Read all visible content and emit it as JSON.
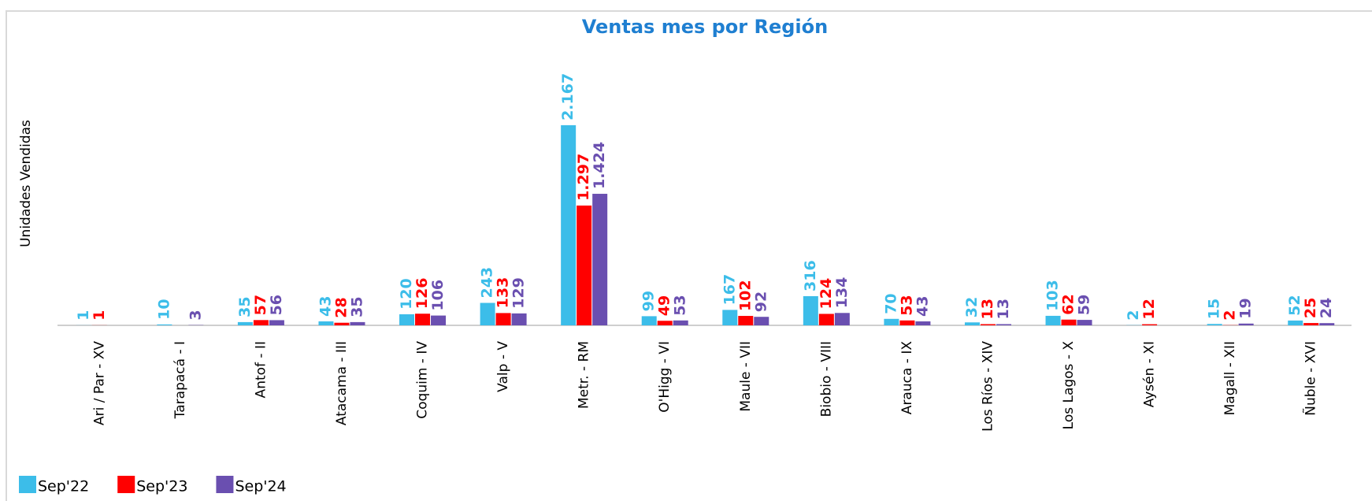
{
  "chart_data": {
    "type": "bar",
    "title": "Ventas mes por Región",
    "y_label": "Unidades Vendidas",
    "categories": [
      "Ari / Par - XV",
      "Tarapacá - I",
      "Antof - II",
      "Atacama - III",
      "Coquim - IV",
      "Valp - V",
      "Metr. - RM",
      "O'Higg - VI",
      "Maule - VII",
      "Biobio - VIII",
      "Arauca - IX",
      "Los Ríos - XIV",
      "Los Lagos - X",
      "Aysén - XI",
      "Magall - XII",
      "Ñuble - XVI"
    ],
    "series": [
      {
        "name": "Sep'22",
        "color": "#3cbde9",
        "values": [
          1,
          10,
          35,
          43,
          120,
          243,
          2167,
          99,
          167,
          316,
          70,
          32,
          103,
          2,
          15,
          52
        ],
        "value_labels": [
          "1",
          "10",
          "35",
          "43",
          "120",
          "243",
          "2.167",
          "99",
          "167",
          "316",
          "70",
          "32",
          "103",
          "2",
          "15",
          "52"
        ]
      },
      {
        "name": "Sep'23",
        "color": "#ff0000",
        "values": [
          1,
          null,
          57,
          28,
          126,
          133,
          1297,
          49,
          102,
          124,
          53,
          13,
          62,
          12,
          2,
          25
        ],
        "value_labels": [
          "1",
          null,
          "57",
          "28",
          "126",
          "133",
          "1.297",
          "49",
          "102",
          "124",
          "53",
          "13",
          "62",
          "12",
          "2",
          "25"
        ]
      },
      {
        "name": "Sep'24",
        "color": "#6a4fb0",
        "values": [
          null,
          3,
          56,
          35,
          106,
          129,
          1424,
          53,
          92,
          134,
          43,
          13,
          59,
          null,
          19,
          24
        ],
        "value_labels": [
          null,
          "3",
          "56",
          "35",
          "106",
          "129",
          "1.424",
          "53",
          "92",
          "134",
          "43",
          "13",
          "59",
          null,
          "19",
          "24"
        ]
      }
    ],
    "ylim": [
      0,
      2840
    ],
    "legend": "bottom-left"
  }
}
